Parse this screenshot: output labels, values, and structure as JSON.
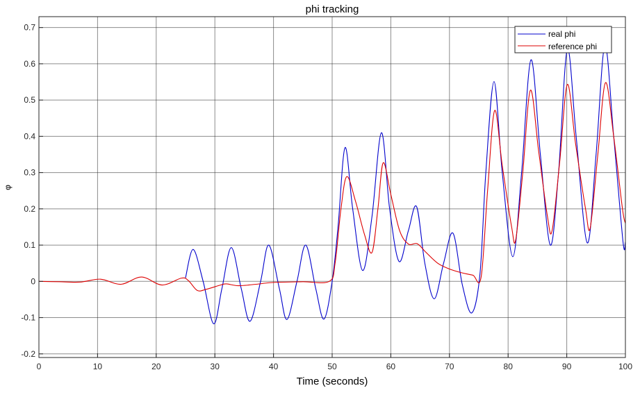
{
  "chart_data": {
    "type": "line",
    "title": "phi tracking",
    "xlabel": "Time (seconds)",
    "ylabel": "φ",
    "xlim": [
      0,
      100
    ],
    "ylim": [
      -0.21,
      0.73
    ],
    "grid": true,
    "legend_position": "top-right",
    "x_ticks": [
      0,
      10,
      20,
      30,
      40,
      50,
      60,
      70,
      80,
      90,
      100
    ],
    "x_tick_labels": [
      "0",
      "10",
      "20",
      "30",
      "40",
      "50",
      "60",
      "70",
      "80",
      "90",
      "100"
    ],
    "y_ticks": [
      -0.2,
      -0.1,
      0,
      0.1,
      0.2,
      0.3,
      0.4,
      0.5,
      0.6,
      0.7
    ],
    "y_tick_labels": [
      "-0.2",
      "-0.1",
      "0",
      "0.1",
      "0.2",
      "0.3",
      "0.4",
      "0.5",
      "0.6",
      "0.7"
    ],
    "series": [
      {
        "name": "real phi",
        "color": "#0000cc",
        "points": [
          [
            25,
            0.01
          ],
          [
            26.3,
            0.088
          ],
          [
            28,
            0.0
          ],
          [
            29.8,
            -0.117
          ],
          [
            31.2,
            -0.02
          ],
          [
            32.8,
            0.093
          ],
          [
            34.5,
            -0.02
          ],
          [
            36,
            -0.11
          ],
          [
            37.8,
            0.0
          ],
          [
            39.2,
            0.1
          ],
          [
            41,
            -0.02
          ],
          [
            42.3,
            -0.105
          ],
          [
            44,
            0.0
          ],
          [
            45.5,
            0.1
          ],
          [
            47.2,
            -0.02
          ],
          [
            48.6,
            -0.104
          ],
          [
            50,
            0.0
          ],
          [
            51,
            0.15
          ],
          [
            52.2,
            0.369
          ],
          [
            53.5,
            0.2
          ],
          [
            55.2,
            0.03
          ],
          [
            56.8,
            0.18
          ],
          [
            58.4,
            0.41
          ],
          [
            59.8,
            0.2
          ],
          [
            61.4,
            0.055
          ],
          [
            63,
            0.14
          ],
          [
            64.4,
            0.206
          ],
          [
            65.8,
            0.05
          ],
          [
            67.4,
            -0.048
          ],
          [
            69,
            0.05
          ],
          [
            70.6,
            0.133
          ],
          [
            72.2,
            -0.01
          ],
          [
            73.8,
            -0.087
          ],
          [
            75.2,
            0.02
          ],
          [
            76.2,
            0.3
          ],
          [
            77.6,
            0.551
          ],
          [
            79,
            0.3
          ],
          [
            80.8,
            0.068
          ],
          [
            82.3,
            0.3
          ],
          [
            83.9,
            0.611
          ],
          [
            85.5,
            0.35
          ],
          [
            87.2,
            0.1
          ],
          [
            88.6,
            0.3
          ],
          [
            90.1,
            0.64
          ],
          [
            91.6,
            0.4
          ],
          [
            93.5,
            0.106
          ],
          [
            95,
            0.35
          ],
          [
            96.5,
            0.65
          ],
          [
            98,
            0.4
          ],
          [
            99.6,
            0.108
          ],
          [
            100,
            0.11
          ]
        ]
      },
      {
        "name": "reference phi",
        "color": "#dd0000",
        "points": [
          [
            0,
            0.0
          ],
          [
            3.5,
            -0.001
          ],
          [
            7,
            -0.002
          ],
          [
            10.5,
            0.006
          ],
          [
            14,
            -0.008
          ],
          [
            17.5,
            0.012
          ],
          [
            21,
            -0.01
          ],
          [
            24.3,
            0.009
          ],
          [
            25.5,
            0.002
          ],
          [
            27,
            -0.025
          ],
          [
            28.5,
            -0.022
          ],
          [
            31,
            -0.01
          ],
          [
            32,
            -0.007
          ],
          [
            34,
            -0.012
          ],
          [
            37,
            -0.008
          ],
          [
            40,
            -0.003
          ],
          [
            45,
            -0.001
          ],
          [
            49.5,
            0.0
          ],
          [
            50.5,
            0.05
          ],
          [
            51.5,
            0.2
          ],
          [
            52.5,
            0.289
          ],
          [
            54,
            0.22
          ],
          [
            55.5,
            0.13
          ],
          [
            56.8,
            0.08
          ],
          [
            57.8,
            0.2
          ],
          [
            58.7,
            0.327
          ],
          [
            60,
            0.24
          ],
          [
            61.5,
            0.14
          ],
          [
            63,
            0.103
          ],
          [
            64.5,
            0.104
          ],
          [
            66,
            0.08
          ],
          [
            68,
            0.05
          ],
          [
            70,
            0.034
          ],
          [
            72,
            0.024
          ],
          [
            74,
            0.017
          ],
          [
            75.4,
            0.012
          ],
          [
            76.5,
            0.25
          ],
          [
            77.7,
            0.471
          ],
          [
            79,
            0.32
          ],
          [
            80.6,
            0.15
          ],
          [
            81.3,
            0.115
          ],
          [
            82.5,
            0.3
          ],
          [
            83.8,
            0.527
          ],
          [
            85.2,
            0.36
          ],
          [
            86.7,
            0.18
          ],
          [
            87.5,
            0.14
          ],
          [
            88.8,
            0.33
          ],
          [
            90.1,
            0.543
          ],
          [
            91.5,
            0.38
          ],
          [
            93.2,
            0.2
          ],
          [
            94,
            0.148
          ],
          [
            95.3,
            0.35
          ],
          [
            96.6,
            0.548
          ],
          [
            98,
            0.4
          ],
          [
            99.5,
            0.2
          ],
          [
            100,
            0.16
          ]
        ]
      }
    ]
  }
}
